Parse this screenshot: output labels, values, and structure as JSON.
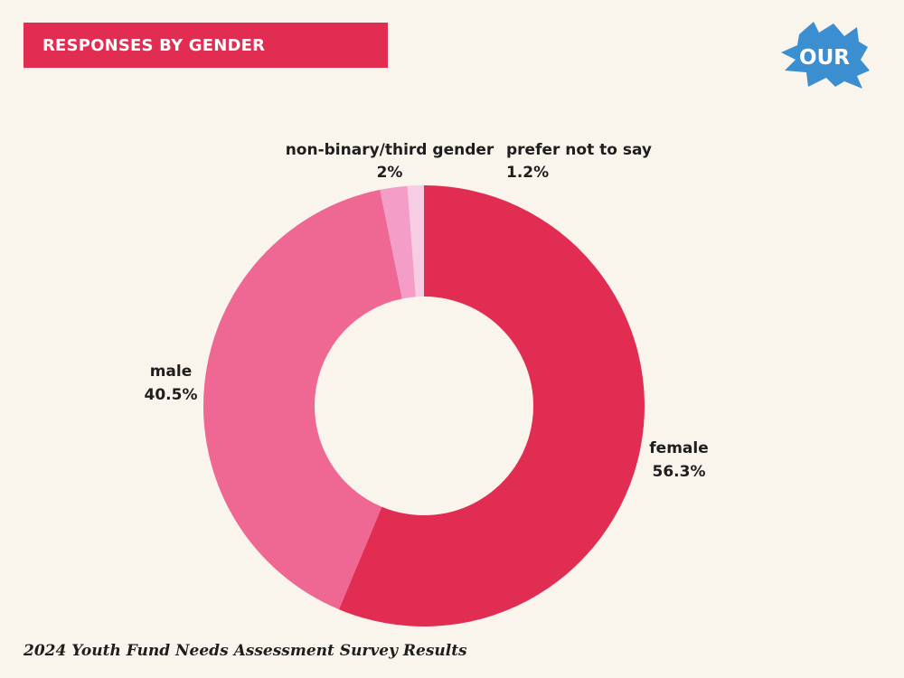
{
  "header": {
    "title": "RESPONSES BY GENDER",
    "logo_text": "OUR",
    "logo_color": "#3b8fd0"
  },
  "chart_data": {
    "type": "pie",
    "donut": true,
    "title": "RESPONSES BY GENDER",
    "slices": [
      {
        "key": "female",
        "label": "female",
        "value": 56.3,
        "display": "56.3%",
        "color": "#e02d51"
      },
      {
        "key": "male",
        "label": "male",
        "value": 40.5,
        "display": "40.5%",
        "color": "#ef6893"
      },
      {
        "key": "nonbinary",
        "label": "non-binary/third gender",
        "value": 2,
        "display": "2%",
        "color": "#f39dc7"
      },
      {
        "key": "prefer",
        "label": "prefer not to say",
        "value": 1.2,
        "display": "1.2%",
        "color": "#f7cde4"
      }
    ]
  },
  "footer": {
    "text": "2024 Youth Fund Needs Assessment Survey Results"
  }
}
